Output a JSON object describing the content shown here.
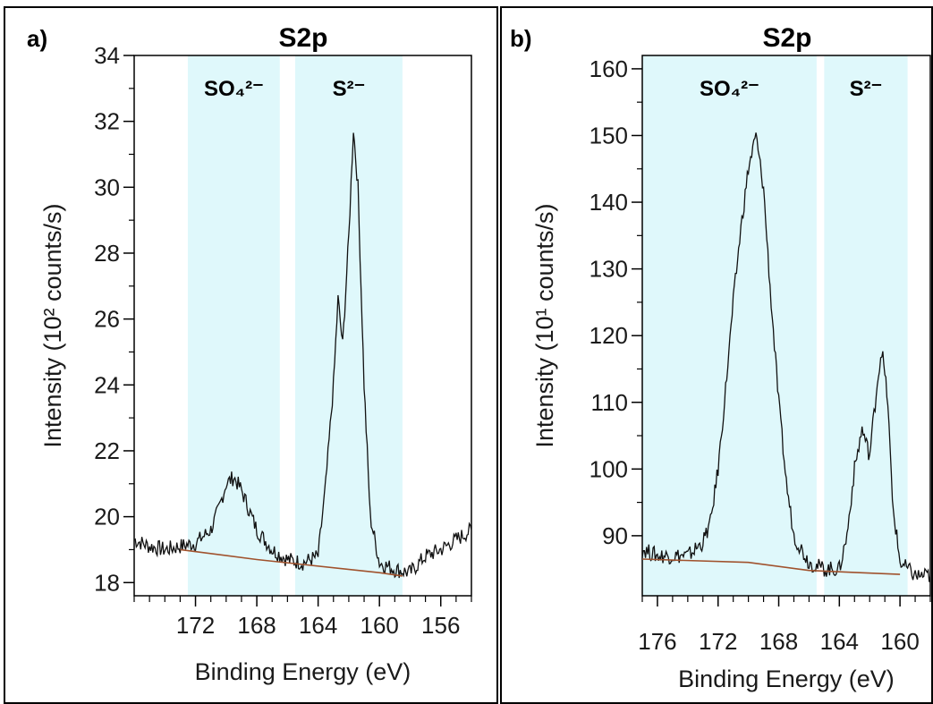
{
  "chart_data": [
    {
      "panel_label": "a)",
      "type": "line",
      "title": "S2p",
      "xlabel": "Binding Energy (eV)",
      "ylabel": "Intensity (10² counts/s)",
      "x_reversed": true,
      "xlim": [
        176,
        154
      ],
      "ylim": [
        17.6,
        34
      ],
      "x_ticks": [
        172,
        168,
        164,
        160,
        156
      ],
      "y_ticks": [
        18,
        20,
        22,
        24,
        26,
        28,
        30,
        32,
        34
      ],
      "regions": [
        {
          "label": "SO₄²⁻",
          "x_range": [
            172.5,
            166.5
          ]
        },
        {
          "label": "S²⁻",
          "x_range": [
            165.5,
            158.5
          ]
        }
      ],
      "series": [
        {
          "role": "spectrum",
          "color": "#111111",
          "points": [
            [
              176,
              19.3
            ],
            [
              175,
              19.1
            ],
            [
              174,
              19.0
            ],
            [
              173,
              19.1
            ],
            [
              172,
              19.2
            ],
            [
              171,
              19.6
            ],
            [
              170.5,
              20.2
            ],
            [
              170,
              21.0
            ],
            [
              169.5,
              21.2
            ],
            [
              169,
              20.8
            ],
            [
              168.5,
              20.2
            ],
            [
              168,
              19.6
            ],
            [
              167,
              19.0
            ],
            [
              166,
              18.7
            ],
            [
              165,
              18.6
            ],
            [
              164,
              18.8
            ],
            [
              163.5,
              21.0
            ],
            [
              163,
              24.0
            ],
            [
              162.7,
              26.6
            ],
            [
              162.4,
              25.2
            ],
            [
              162,
              28.5
            ],
            [
              161.7,
              31.8
            ],
            [
              161.4,
              30.0
            ],
            [
              161,
              24.0
            ],
            [
              160.6,
              20.0
            ],
            [
              160,
              18.6
            ],
            [
              159,
              18.4
            ],
            [
              158,
              18.3
            ],
            [
              157,
              18.8
            ],
            [
              156,
              19.0
            ],
            [
              155,
              19.3
            ],
            [
              154,
              19.6
            ]
          ]
        },
        {
          "role": "background",
          "color": "#a0522d",
          "points": [
            [
              173,
              19.0
            ],
            [
              168,
              18.7
            ],
            [
              160,
              18.3
            ],
            [
              158.5,
              18.2
            ]
          ]
        }
      ]
    },
    {
      "panel_label": "b)",
      "type": "line",
      "title": "S2p",
      "xlabel": "Binding Energy (eV)",
      "ylabel": "Intensity (10¹ counts/s)",
      "x_reversed": true,
      "xlim": [
        177,
        158
      ],
      "ylim": [
        81,
        162
      ],
      "x_ticks": [
        176,
        172,
        168,
        164,
        160
      ],
      "y_ticks": [
        90,
        100,
        110,
        120,
        130,
        140,
        150,
        160
      ],
      "regions": [
        {
          "label": "SO₄²⁻",
          "x_range": [
            177,
            165.5
          ]
        },
        {
          "label": "S²⁻",
          "x_range": [
            165,
            159.5
          ]
        }
      ],
      "series": [
        {
          "role": "spectrum",
          "color": "#111111",
          "points": [
            [
              177,
              88
            ],
            [
              176,
              87
            ],
            [
              175,
              87
            ],
            [
              174,
              87
            ],
            [
              173,
              89
            ],
            [
              172.5,
              92
            ],
            [
              172,
              100
            ],
            [
              171.5,
              112
            ],
            [
              171,
              125
            ],
            [
              170.5,
              136
            ],
            [
              170,
              145
            ],
            [
              169.5,
              150
            ],
            [
              169,
              142
            ],
            [
              168.5,
              125
            ],
            [
              168,
              110
            ],
            [
              167.5,
              98
            ],
            [
              167,
              90
            ],
            [
              166,
              86
            ],
            [
              165,
              85
            ],
            [
              164,
              85
            ],
            [
              163.5,
              90
            ],
            [
              163,
              100
            ],
            [
              162.5,
              106
            ],
            [
              162,
              102
            ],
            [
              161.5,
              113
            ],
            [
              161.2,
              118
            ],
            [
              160.8,
              110
            ],
            [
              160.5,
              95
            ],
            [
              160,
              86
            ],
            [
              159,
              84
            ],
            [
              158,
              84
            ]
          ]
        },
        {
          "role": "background",
          "color": "#a0522d",
          "points": [
            [
              177,
              86.5
            ],
            [
              170,
              86.0
            ],
            [
              166,
              84.8
            ],
            [
              163,
              84.5
            ],
            [
              160,
              84.2
            ]
          ]
        }
      ]
    }
  ]
}
